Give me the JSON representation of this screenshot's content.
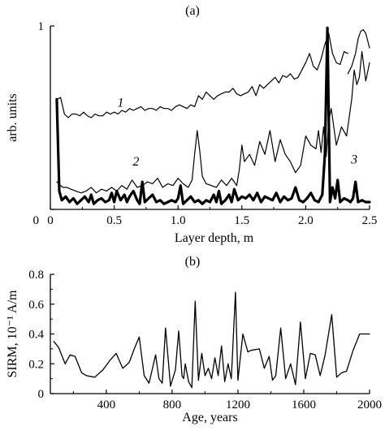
{
  "chart_data": [
    {
      "panel_label": "(a)",
      "type": "line",
      "xlabel": "Layer depth, m",
      "ylabel": "arb. units",
      "xlim": [
        0,
        2.5
      ],
      "ylim": [
        0,
        1
      ],
      "x_ticks": [
        "0",
        "0.5",
        "1.0",
        "1.5",
        "2.0",
        "2.5"
      ],
      "y_ticks": [
        "0",
        "1"
      ],
      "annotations": [
        {
          "text": "1",
          "x": 0.55,
          "y": 0.56
        },
        {
          "text": "2",
          "x": 0.67,
          "y": 0.24
        },
        {
          "text": "3",
          "x": 2.38,
          "y": 0.25
        }
      ],
      "series": [
        {
          "name": "",
          "label": "1",
          "stroke": "#000000",
          "width": 1.2,
          "x": [
            0.05,
            0.08,
            0.11,
            0.14,
            0.17,
            0.2,
            0.23,
            0.26,
            0.29,
            0.32,
            0.35,
            0.38,
            0.41,
            0.44,
            0.47,
            0.5,
            0.53,
            0.56,
            0.59,
            0.62,
            0.65,
            0.68,
            0.71,
            0.74,
            0.77,
            0.8,
            0.83,
            0.86,
            0.89,
            0.92,
            0.95,
            0.98,
            1.01,
            1.04,
            1.07,
            1.1,
            1.13,
            1.16,
            1.19,
            1.22,
            1.25,
            1.28,
            1.31,
            1.34,
            1.37,
            1.4,
            1.43,
            1.46,
            1.49,
            1.52,
            1.55,
            1.58,
            1.61,
            1.64,
            1.67,
            1.7,
            1.73,
            1.76,
            1.79,
            1.82,
            1.85,
            1.88,
            1.91,
            1.94,
            1.97,
            2.0,
            2.03,
            2.06,
            2.09,
            2.12,
            2.15,
            2.18,
            2.21,
            2.24,
            2.27,
            2.3,
            2.33
          ],
          "y": [
            0.6,
            0.61,
            0.52,
            0.5,
            0.52,
            0.52,
            0.51,
            0.53,
            0.51,
            0.5,
            0.52,
            0.51,
            0.51,
            0.53,
            0.52,
            0.53,
            0.52,
            0.54,
            0.53,
            0.55,
            0.54,
            0.55,
            0.56,
            0.54,
            0.55,
            0.55,
            0.54,
            0.56,
            0.55,
            0.55,
            0.54,
            0.56,
            0.57,
            0.56,
            0.55,
            0.57,
            0.56,
            0.62,
            0.6,
            0.64,
            0.62,
            0.6,
            0.62,
            0.63,
            0.64,
            0.64,
            0.66,
            0.63,
            0.62,
            0.63,
            0.64,
            0.67,
            0.62,
            0.68,
            0.66,
            0.68,
            0.7,
            0.72,
            0.69,
            0.73,
            0.72,
            0.74,
            0.71,
            0.72,
            0.76,
            0.8,
            0.85,
            0.78,
            0.76,
            0.82,
            0.9,
            0.96,
            0.85,
            0.8,
            0.79,
            0.86,
            0.85
          ]
        },
        {
          "name": "",
          "label": "",
          "stroke": "#000000",
          "width": 1.2,
          "x": [
            2.33,
            2.36,
            2.39,
            2.41,
            2.43,
            2.45,
            2.47,
            2.5
          ],
          "y": [
            0.74,
            0.78,
            0.85,
            0.93,
            0.97,
            0.98,
            0.96,
            0.88
          ]
        },
        {
          "name": "",
          "label": "2",
          "stroke": "#000000",
          "width": 1.2,
          "x": [
            0.05,
            0.08,
            0.1,
            0.13,
            0.16,
            0.2,
            0.24,
            0.28,
            0.32,
            0.36,
            0.4,
            0.44,
            0.48,
            0.52,
            0.56,
            0.6,
            0.64,
            0.68,
            0.72,
            0.76,
            0.8,
            0.84,
            0.88,
            0.92,
            0.96,
            1.0,
            1.04,
            1.08,
            1.11,
            1.13,
            1.15,
            1.17,
            1.19,
            1.22,
            1.26,
            1.3,
            1.34,
            1.38,
            1.42,
            1.46,
            1.48,
            1.5,
            1.52,
            1.56,
            1.6,
            1.64,
            1.68,
            1.72,
            1.76,
            1.8,
            1.84,
            1.88,
            1.92,
            1.96,
            2.0,
            2.04,
            2.08,
            2.1,
            2.12,
            2.14,
            2.16,
            2.18,
            2.2,
            2.24,
            2.28,
            2.32,
            2.36,
            2.38,
            2.4,
            2.42,
            2.44,
            2.47,
            2.5
          ],
          "y": [
            0.15,
            0.13,
            0.12,
            0.12,
            0.11,
            0.1,
            0.09,
            0.1,
            0.12,
            0.09,
            0.11,
            0.1,
            0.12,
            0.1,
            0.13,
            0.11,
            0.16,
            0.12,
            0.13,
            0.15,
            0.14,
            0.17,
            0.12,
            0.14,
            0.13,
            0.17,
            0.14,
            0.12,
            0.16,
            0.3,
            0.43,
            0.32,
            0.18,
            0.14,
            0.13,
            0.12,
            0.16,
            0.13,
            0.17,
            0.13,
            0.22,
            0.35,
            0.26,
            0.3,
            0.24,
            0.37,
            0.3,
            0.43,
            0.26,
            0.38,
            0.3,
            0.26,
            0.2,
            0.24,
            0.4,
            0.35,
            0.33,
            0.43,
            0.31,
            0.45,
            0.29,
            0.48,
            0.55,
            0.35,
            0.45,
            0.4,
            0.6,
            0.76,
            0.68,
            0.72,
            0.86,
            0.7,
            0.8
          ]
        },
        {
          "name": "",
          "label": "3",
          "stroke": "#000000",
          "width": 3.2,
          "x": [
            0.05,
            0.07,
            0.09,
            0.12,
            0.15,
            0.18,
            0.21,
            0.24,
            0.27,
            0.3,
            0.32,
            0.34,
            0.37,
            0.4,
            0.43,
            0.46,
            0.48,
            0.5,
            0.52,
            0.55,
            0.58,
            0.6,
            0.62,
            0.65,
            0.68,
            0.7,
            0.72,
            0.74,
            0.77,
            0.8,
            0.83,
            0.86,
            0.89,
            0.92,
            0.95,
            0.98,
            1.0,
            1.02,
            1.04,
            1.07,
            1.1,
            1.13,
            1.16,
            1.19,
            1.22,
            1.25,
            1.28,
            1.3,
            1.32,
            1.34,
            1.37,
            1.4,
            1.42,
            1.44,
            1.47,
            1.5,
            1.53,
            1.56,
            1.59,
            1.62,
            1.65,
            1.68,
            1.71,
            1.74,
            1.77,
            1.8,
            1.83,
            1.86,
            1.89,
            1.92,
            1.95,
            1.98,
            2.01,
            2.04,
            2.07,
            2.1,
            2.13,
            2.15,
            2.17,
            2.19,
            2.21,
            2.23,
            2.25,
            2.27,
            2.3,
            2.33,
            2.35,
            2.37,
            2.39,
            2.41,
            2.44,
            2.47,
            2.5
          ],
          "y": [
            0.6,
            0.1,
            0.05,
            0.07,
            0.04,
            0.06,
            0.03,
            0.05,
            0.07,
            0.04,
            0.08,
            0.03,
            0.05,
            0.06,
            0.04,
            0.05,
            0.09,
            0.04,
            0.1,
            0.05,
            0.08,
            0.04,
            0.07,
            0.1,
            0.05,
            0.03,
            0.15,
            0.04,
            0.06,
            0.08,
            0.04,
            0.05,
            0.03,
            0.04,
            0.05,
            0.04,
            0.06,
            0.13,
            0.03,
            0.05,
            0.07,
            0.04,
            0.05,
            0.03,
            0.05,
            0.04,
            0.08,
            0.04,
            0.1,
            0.03,
            0.05,
            0.08,
            0.04,
            0.11,
            0.05,
            0.07,
            0.06,
            0.08,
            0.05,
            0.09,
            0.04,
            0.07,
            0.06,
            0.05,
            0.09,
            0.04,
            0.07,
            0.05,
            0.06,
            0.12,
            0.05,
            0.04,
            0.06,
            0.09,
            0.05,
            0.04,
            0.08,
            0.3,
            0.99,
            0.04,
            0.12,
            0.06,
            0.16,
            0.04,
            0.06,
            0.05,
            0.04,
            0.06,
            0.15,
            0.04,
            0.05,
            0.04,
            0.04
          ]
        }
      ]
    },
    {
      "panel_label": "(b)",
      "type": "line",
      "xlabel": "Age, years",
      "ylabel": "SIRM, 10⁻¹ A/m",
      "xlim": [
        60,
        2000
      ],
      "ylim": [
        0,
        0.8
      ],
      "x_ticks": [
        "400",
        "800",
        "1200",
        "1600",
        "2000"
      ],
      "y_ticks": [
        "0",
        "0.2",
        "0.4",
        "0.6",
        "0.8"
      ],
      "series": [
        {
          "name": "",
          "stroke": "#000000",
          "width": 1.3,
          "x": [
            80,
            110,
            150,
            180,
            210,
            250,
            280,
            330,
            380,
            420,
            460,
            500,
            540,
            570,
            600,
            630,
            660,
            700,
            720,
            740,
            760,
            790,
            820,
            840,
            860,
            870,
            880,
            900,
            920,
            940,
            960,
            980,
            1000,
            1020,
            1040,
            1060,
            1080,
            1100,
            1120,
            1140,
            1160,
            1185,
            1200,
            1230,
            1260,
            1280,
            1330,
            1360,
            1390,
            1410,
            1430,
            1460,
            1490,
            1520,
            1550,
            1580,
            1610,
            1640,
            1670,
            1700,
            1730,
            1770,
            1800,
            1830,
            1860,
            1900,
            1940,
            1970,
            2000
          ],
          "y": [
            0.35,
            0.31,
            0.2,
            0.26,
            0.25,
            0.14,
            0.12,
            0.11,
            0.16,
            0.22,
            0.27,
            0.17,
            0.21,
            0.3,
            0.38,
            0.12,
            0.07,
            0.26,
            0.1,
            0.07,
            0.44,
            0.05,
            0.16,
            0.42,
            0.12,
            0.1,
            0.2,
            0.08,
            0.04,
            0.62,
            0.09,
            0.27,
            0.12,
            0.17,
            0.1,
            0.24,
            0.12,
            0.32,
            0.08,
            0.2,
            0.1,
            0.68,
            0.09,
            0.4,
            0.28,
            0.29,
            0.3,
            0.17,
            0.25,
            0.09,
            0.12,
            0.44,
            0.1,
            0.2,
            0.06,
            0.48,
            0.1,
            0.27,
            0.26,
            0.12,
            0.26,
            0.53,
            0.11,
            0.14,
            0.15,
            0.29,
            0.4,
            0.4,
            0.4
          ]
        }
      ]
    }
  ]
}
